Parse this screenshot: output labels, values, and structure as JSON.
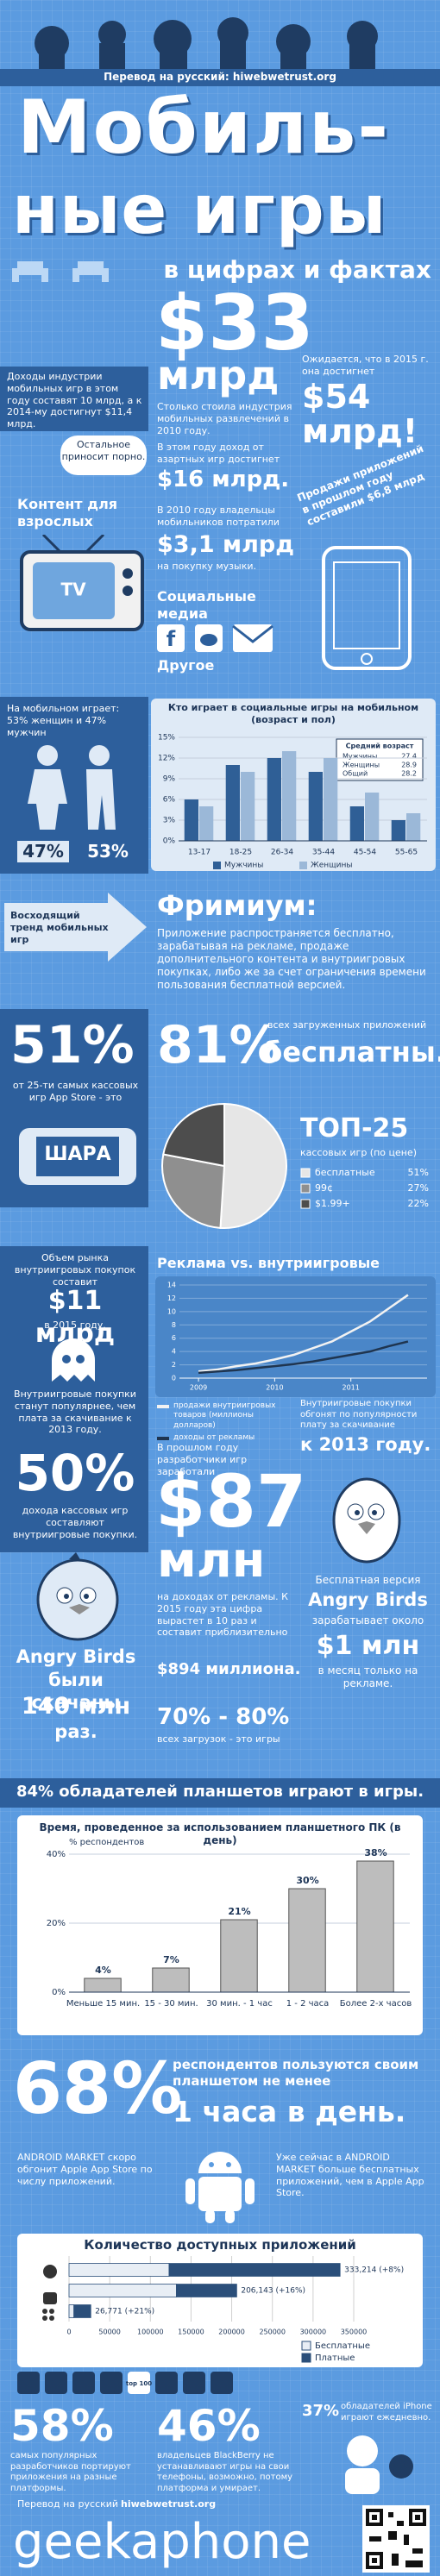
{
  "header": {
    "credit": "Перевод на русский: hiwebwetrust.org",
    "title_line1": "Мобиль-",
    "title_line2": "ные игры",
    "subtitle": "в цифрах и фактах"
  },
  "industry": {
    "big": "$33",
    "big_unit": "млрд",
    "big_text": "Столько стоила индустрия мобильных развлечений в 2010 году.",
    "left_text": "Доходы индустрии мобильных игр в этом году составят 10 млрд, а к 2014-му достигнут $11,4 млрд.",
    "right_text": "Ожидается, что в 2015 г. она достигнет",
    "right_big": "$54 млрд!",
    "gambling_text": "В этом году доход от азартных игр достигнет",
    "gambling_big": "$16 млрд.",
    "porn_text": "Остальное приносит порно.",
    "adult": "Контент для взрослых",
    "tv": "TV",
    "music_text1": "В 2010 году владельцы мобильников потратили",
    "music_big": "$3,1 млрд",
    "music_text2": "на покупку музыки.",
    "apps_text": "Продажи приложений в прошлом году составили $6,8 млрд",
    "social": "Социальные медиа",
    "other": "Другое"
  },
  "gender": {
    "text": "На мобильном играет: 53% женщин и 47% мужчин",
    "men": "47%",
    "women": "53%",
    "avg_age": {
      "title": "Средний возраст",
      "rows": [
        [
          "Мужчины",
          "27.4"
        ],
        [
          "Женщины",
          "28.9"
        ],
        [
          "Общий",
          "28.2"
        ]
      ]
    }
  },
  "freemium": {
    "trend": "Восходящий тренд мобильных игр",
    "title": "Фримиум:",
    "text": "Приложение распространяется бесплатно, зарабатывая на рекламе, продаже дополнительного контента и внутриигровых покупках, либо же за счет ограничения времени пользования бесплатной версией."
  },
  "top25": {
    "big": "51%",
    "text": "от 25-ти самых кассовых игр App Store - это",
    "sign": "ШАРА",
    "free_big": "81%",
    "free_text": "всех загруженных приложений",
    "free_word": "бесплатны."
  },
  "inapp": {
    "market_text": "Объем рынка внутриигровых покупок составит",
    "market_big": "$11 млрд",
    "market_year": "в 2015 году.",
    "popular_text": "Внутриигровые покупки станут популярнее, чем плата за скачивание к 2013 году.",
    "share_big": "50%",
    "share_text": "дохода кассовых игр составляют внутриигровые покупки.",
    "overtake_text": "Внутриигровые покупки обгонят по популярности плату за скачивание",
    "overtake_big": "к 2013 году."
  },
  "ads": {
    "text1": "В прошлом году разработчики игр заработали",
    "big": "$87",
    "big_unit": "млн",
    "text2": "на доходах от рекламы. К 2015 году эта цифра вырастет в 10 раз и составит приблизительно",
    "big2": "$894 миллиона.",
    "games_big": "70% - 80%",
    "games_text": "всех загрузок - это игры"
  },
  "angry_left": {
    "name": "Angry Birds",
    "line1": "были скачаны",
    "big": "140 млн",
    "line2": "раз."
  },
  "angry_right": {
    "line1": "Бесплатная версия",
    "name": "Angry Birds",
    "line2": "зарабатывает около",
    "big": "$1 млн",
    "line3": "в месяц только на рекламе."
  },
  "tablets": {
    "text": "84% обладателей планшетов играют в игры."
  },
  "hour": {
    "big": "68%",
    "text": "респондентов пользуются своим планшетом не менее",
    "big2": "1 часа в день."
  },
  "android": {
    "left": "ANDROID MARKET скоро обгонит Apple App Store по числу приложений.",
    "right": "Уже сейчас в ANDROID MARKET больше бесплатных приложений, чем в Apple App Store."
  },
  "icons": {
    "top100": "top 100"
  },
  "platforms": {
    "big1": "58%",
    "text1": "самых популярных разработчиков портируют приложения на разные платформы.",
    "big2": "46%",
    "text2": "владельцев BlackBerry не устанавливают игры на свои телефоны, возможно, потому платформа и умирает.",
    "big3": "37%",
    "text3": "обладателей iPhone играют ежедневно."
  },
  "footer": {
    "credit": "Перевод на русский",
    "site": "hiwebwetrust.org",
    "brand": "geekaphone"
  },
  "chart_data": [
    {
      "type": "bar",
      "title": "Кто играет в социальные игры на мобильном (возраст и пол)",
      "categories": [
        "13-17",
        "18-25",
        "26-34",
        "35-44",
        "45-54",
        "55-65"
      ],
      "series": [
        {
          "name": "Мужчины",
          "color": "#2f5f96",
          "values": [
            6,
            11,
            12,
            10,
            5,
            3
          ]
        },
        {
          "name": "Женщины",
          "color": "#9bb8d8",
          "values": [
            5,
            10,
            13,
            12,
            7,
            4
          ]
        }
      ],
      "ylim": [
        0,
        15
      ],
      "yticks": [
        {
          "value": 0,
          "label": "0%"
        },
        {
          "value": 3,
          "label": "3%"
        },
        {
          "value": 6,
          "label": "6%"
        },
        {
          "value": 9,
          "label": "9%"
        },
        {
          "value": 12,
          "label": "12%"
        },
        {
          "value": 15,
          "label": "15%"
        }
      ],
      "grid": true
    },
    {
      "type": "pie",
      "title": "ТОП-25",
      "subtitle": "кассовых игр (по цене)",
      "categories": [
        "бесплатные",
        "99¢",
        "$1.99+"
      ],
      "values": [
        51,
        27,
        22
      ],
      "value_labels": [
        "51%",
        "27%",
        "22%"
      ],
      "colors": [
        "#e6e6e6",
        "#8f8f8f",
        "#4d4d4d"
      ]
    },
    {
      "type": "line",
      "title": "Реклама vs. внутриигровые покупки",
      "x": [
        2009,
        2009.25,
        2009.5,
        2009.75,
        2010,
        2010.25,
        2010.5,
        2010.75,
        2011,
        2011.25,
        2011.5,
        2011.75
      ],
      "xlim": [
        2008.75,
        2012
      ],
      "xticks": [
        2009,
        2010,
        2011
      ],
      "ylim": [
        0,
        14
      ],
      "yticks": [
        0,
        2,
        4,
        6,
        8,
        10,
        12,
        14
      ],
      "grid": true,
      "series": [
        {
          "name": "продажи внутриигровых товаров (миллионы долларов)",
          "color": "#f2f2f2",
          "values": [
            1,
            1.3,
            1.8,
            2.2,
            2.8,
            3.5,
            4.5,
            5.5,
            7,
            8.5,
            10.5,
            12.5
          ]
        },
        {
          "name": "доходы от рекламы",
          "color": "#1f3550",
          "values": [
            0.8,
            1,
            1.2,
            1.5,
            1.8,
            2.1,
            2.5,
            3,
            3.5,
            4,
            4.8,
            5.5
          ]
        }
      ]
    },
    {
      "type": "bar",
      "title": "Время, проведенное за использованием планшетного ПК (в день)",
      "ylabel": "% респондентов",
      "categories": [
        "Меньше 15 мин.",
        "15 - 30 мин.",
        "30 мин. - 1 час",
        "1 - 2 часа",
        "Более 2-х часов"
      ],
      "values": [
        4,
        7,
        21,
        30,
        38
      ],
      "value_labels": [
        "4%",
        "7%",
        "21%",
        "30%",
        "38%"
      ],
      "color": "#bdbdbd",
      "ylim": [
        0,
        40
      ],
      "yticks": [
        {
          "value": 0,
          "label": "0%"
        },
        {
          "value": 20,
          "label": "20%"
        },
        {
          "value": 40,
          "label": "40%"
        }
      ],
      "grid": true
    },
    {
      "type": "bar",
      "horizontal": true,
      "stacked": true,
      "title": "Количество доступных приложений",
      "categories": [
        null,
        null,
        null
      ],
      "series": [
        {
          "name": "Бесплатные",
          "color": "#e8eef5",
          "values": [
            123000,
            132000,
            6000
          ]
        },
        {
          "name": "Платные",
          "color": "#2b4f7a",
          "values": [
            210214,
            74143,
            20771
          ]
        }
      ],
      "bar_labels": [
        "333,214 (+8%)",
        "206,143 (+16%)",
        "26,771 (+21%)"
      ],
      "xlim": [
        0,
        350000
      ],
      "xticks": [
        0,
        50000,
        100000,
        150000,
        200000,
        250000,
        300000,
        350000
      ],
      "grid": true
    }
  ]
}
